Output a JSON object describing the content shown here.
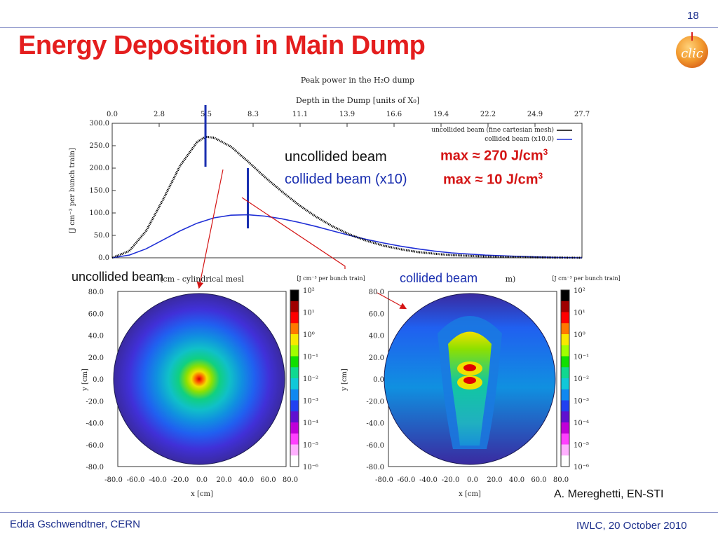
{
  "slide": {
    "number": "18",
    "title": "Energy Deposition in Main Dump",
    "footer_left": "Edda Gschwendtner, CERN",
    "footer_right": "IWLC, 20 October 2010",
    "credit": "A. Mereghetti, EN-STI",
    "logo_text": "clic"
  },
  "annotations": {
    "uncollided_label": "uncollided beam",
    "collided_label": "collided beam (x10)",
    "max_uncollided": "max ≈ 270 J/cm",
    "max_collided": "max ≈ 10 J/cm",
    "superscript": "3",
    "map_uncollided_label": "uncollided beam",
    "map_collided_label": "collided beam"
  },
  "colors": {
    "title_red": "#e41e1e",
    "footer_blue": "#1c2f8c",
    "uncollided_series": "#000000",
    "collided_series": "#1f2fd6",
    "marker_blue": "#1a2fb0",
    "arrow_red": "#d41515"
  },
  "chart_data": [
    {
      "type": "line",
      "title": "Peak power in the H₂O dump",
      "x2label": "Depth in the Dump [units of X₀]",
      "x2_ticks": [
        "0.0",
        "2.8",
        "5.5",
        "8.3",
        "11.1",
        "13.9",
        "16.6",
        "19.4",
        "22.2",
        "24.9",
        "27.7"
      ],
      "ylabel": "[J cm⁻³ per bunch train]",
      "y_ticks": [
        "0.0",
        "50.0",
        "100.0",
        "150.0",
        "200.0",
        "250.0",
        "300.0"
      ],
      "xlim": [
        0,
        27.7
      ],
      "ylim": [
        0,
        300
      ],
      "legend_position": "top-right",
      "series": [
        {
          "name": "uncollided beam (fine cartesian mesh)",
          "x": [
            0.0,
            1.0,
            2.0,
            3.0,
            4.0,
            5.0,
            5.5,
            6.0,
            7.0,
            8.0,
            9.0,
            10.0,
            11.0,
            12.0,
            13.0,
            14.0,
            15.0,
            16.0,
            17.0,
            18.0,
            19.0,
            20.0,
            22.0,
            24.0,
            26.0,
            27.7
          ],
          "y": [
            0,
            15,
            60,
            130,
            205,
            258,
            270,
            268,
            248,
            215,
            180,
            148,
            118,
            92,
            70,
            52,
            38,
            27,
            19,
            13,
            9,
            6,
            3,
            1.5,
            0.5,
            0
          ]
        },
        {
          "name": "collided beam (x10.0)",
          "x": [
            0.0,
            1.0,
            2.0,
            3.0,
            4.0,
            5.0,
            6.0,
            7.0,
            8.0,
            9.0,
            10.0,
            11.0,
            12.0,
            13.0,
            14.0,
            15.0,
            16.0,
            17.0,
            18.0,
            19.0,
            20.0,
            22.0,
            24.0,
            26.0,
            27.7
          ],
          "y": [
            0,
            6,
            20,
            40,
            60,
            77,
            89,
            95,
            96,
            93,
            87,
            79,
            70,
            60,
            50,
            41,
            33,
            26,
            20,
            15,
            11,
            6,
            3,
            1,
            0
          ]
        }
      ]
    },
    {
      "type": "heatmap",
      "title_fragment": "(cm - cylindrical mesl",
      "colorbar_title": "[J cm⁻³ per bunch train]",
      "xlabel": "x [cm]",
      "ylabel": "y [cm]",
      "x_ticks": [
        "-80.0",
        "-60.0",
        "-40.0",
        "-20.0",
        "0.0",
        "20.0",
        "40.0",
        "60.0",
        "80.0"
      ],
      "y_ticks": [
        "80.0",
        "60.0",
        "40.0",
        "20.0",
        "0.0",
        "-20.0",
        "-40.0",
        "-60.0",
        "-80.0"
      ],
      "colorbar_ticks": [
        "10²",
        "10¹",
        "10⁰",
        "10⁻¹",
        "10⁻²",
        "10⁻³",
        "10⁻⁴",
        "10⁻⁵",
        "10⁻⁶"
      ],
      "xlim": [
        -80,
        80
      ],
      "ylim": [
        -80,
        80
      ],
      "log_scale": true,
      "peak": {
        "x": 0,
        "y": 0
      }
    },
    {
      "type": "heatmap",
      "title_fragment": "m)",
      "colorbar_title": "[J cm⁻³ per bunch train]",
      "xlabel": "x [cm]",
      "ylabel": "y [cm]",
      "x_ticks": [
        "-80.0",
        "-60.0",
        "-40.0",
        "-20.0",
        "0.0",
        "20.0",
        "40.0",
        "60.0",
        "80.0"
      ],
      "y_ticks": [
        "80.0",
        "60.0",
        "40.0",
        "20.0",
        "0.0",
        "-20.0",
        "-40.0",
        "-60.0",
        "-80.0"
      ],
      "colorbar_ticks": [
        "10²",
        "10¹",
        "10⁰",
        "10⁻¹",
        "10⁻²",
        "10⁻³",
        "10⁻⁴",
        "10⁻⁵",
        "10⁻⁶"
      ],
      "xlim": [
        -80,
        80
      ],
      "ylim": [
        -80,
        80
      ],
      "log_scale": true,
      "peaks": [
        {
          "x": 0,
          "y": 7
        },
        {
          "x": 0,
          "y": 0
        }
      ]
    }
  ]
}
